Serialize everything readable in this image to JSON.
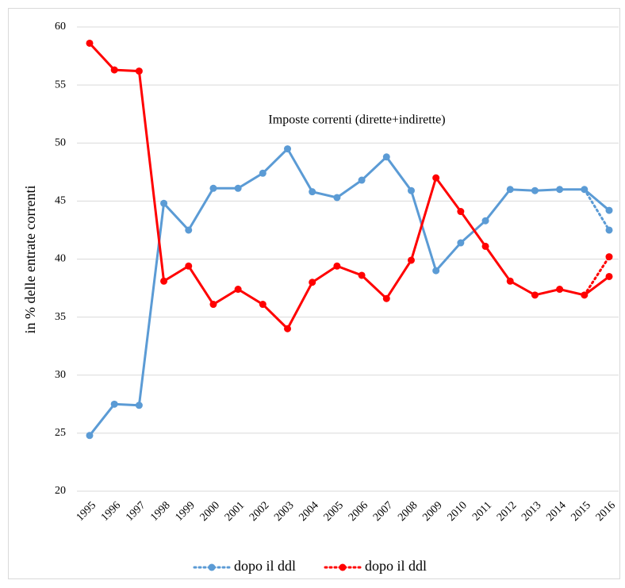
{
  "chart_data": {
    "type": "line",
    "annotation": "Imposte correnti (dirette+indirette)",
    "y_label": "in % delle entrate correnti",
    "categories": [
      "1995",
      "1996",
      "1997",
      "1998",
      "1999",
      "2000",
      "2001",
      "2002",
      "2003",
      "2004",
      "2005",
      "2006",
      "2007",
      "2008",
      "2009",
      "2010",
      "2011",
      "2012",
      "2013",
      "2014",
      "2015",
      "2016"
    ],
    "series": [
      {
        "color": "#5b9bd5",
        "dotted": false,
        "values": [
          24.8,
          27.5,
          27.4,
          44.8,
          42.5,
          46.1,
          46.1,
          47.4,
          49.5,
          45.8,
          45.3,
          46.8,
          48.8,
          45.9,
          39.0,
          41.4,
          43.3,
          46.0,
          45.9,
          46.0,
          46.0,
          44.2
        ]
      },
      {
        "color": "#ff0000",
        "dotted": false,
        "values": [
          58.6,
          56.3,
          56.2,
          38.1,
          39.4,
          36.1,
          37.4,
          36.1,
          34.0,
          38.0,
          39.4,
          38.6,
          36.6,
          39.9,
          47.0,
          44.1,
          41.1,
          38.1,
          36.9,
          37.4,
          36.9,
          38.5
        ]
      },
      {
        "name": "dopo il ddl",
        "color": "#5b9bd5",
        "dotted": true,
        "values": [
          null,
          null,
          null,
          null,
          null,
          null,
          null,
          null,
          null,
          null,
          null,
          null,
          null,
          null,
          null,
          null,
          null,
          null,
          null,
          null,
          46.0,
          42.5
        ]
      },
      {
        "name": "dopo il ddl",
        "color": "#ff0000",
        "dotted": true,
        "values": [
          null,
          null,
          null,
          null,
          null,
          null,
          null,
          null,
          null,
          null,
          null,
          null,
          null,
          null,
          null,
          null,
          null,
          null,
          null,
          null,
          36.9,
          40.2
        ]
      }
    ],
    "ylim": [
      20,
      60
    ],
    "yticks": [
      20,
      25,
      30,
      35,
      40,
      45,
      50,
      55,
      60
    ],
    "grid": true
  }
}
